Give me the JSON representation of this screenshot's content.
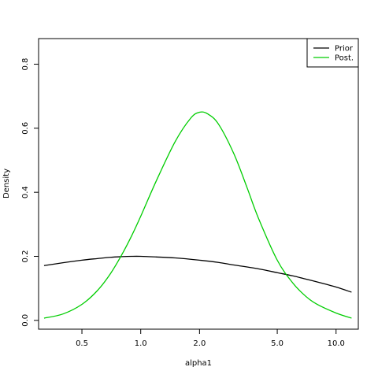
{
  "chart_data": {
    "type": "line",
    "title": "",
    "xlabel": "alpha1",
    "ylabel": "Density",
    "x_scale": "log",
    "xlim": [
      0.3,
      13
    ],
    "ylim": [
      0,
      0.85
    ],
    "grid": false,
    "legend_position": "top-right",
    "x_ticks": [
      0.5,
      1.0,
      2.0,
      5.0,
      10.0
    ],
    "x_tick_labels": [
      "0.5",
      "1.0",
      "2.0",
      "5.0",
      "10.0"
    ],
    "y_ticks": [
      0.0,
      0.2,
      0.4,
      0.6,
      0.8
    ],
    "y_tick_labels": [
      "0.0",
      "0.2",
      "0.4",
      "0.6",
      "0.8"
    ],
    "series": [
      {
        "name": "Prior",
        "color": "#000000",
        "x": [
          0.32,
          0.4,
          0.5,
          0.6,
          0.7,
          0.8,
          0.9,
          1.0,
          1.2,
          1.5,
          2.0,
          2.5,
          3.0,
          4.0,
          5.0,
          6.0,
          7.0,
          8.0,
          10.0,
          12.0
        ],
        "y": [
          0.171,
          0.18,
          0.188,
          0.193,
          0.197,
          0.199,
          0.2,
          0.2,
          0.198,
          0.195,
          0.188,
          0.181,
          0.173,
          0.161,
          0.149,
          0.139,
          0.129,
          0.12,
          0.104,
          0.088
        ]
      },
      {
        "name": "Post.",
        "color": "#00cd00",
        "x": [
          0.32,
          0.4,
          0.5,
          0.6,
          0.7,
          0.8,
          0.9,
          1.0,
          1.2,
          1.5,
          1.8,
          2.0,
          2.2,
          2.5,
          3.0,
          3.5,
          4.0,
          5.0,
          6.0,
          7.0,
          8.0,
          10.0,
          12.0
        ],
        "y": [
          0.007,
          0.02,
          0.05,
          0.093,
          0.146,
          0.205,
          0.265,
          0.325,
          0.435,
          0.558,
          0.631,
          0.65,
          0.645,
          0.613,
          0.52,
          0.415,
          0.32,
          0.188,
          0.117,
          0.075,
          0.05,
          0.023,
          0.007
        ]
      }
    ]
  }
}
